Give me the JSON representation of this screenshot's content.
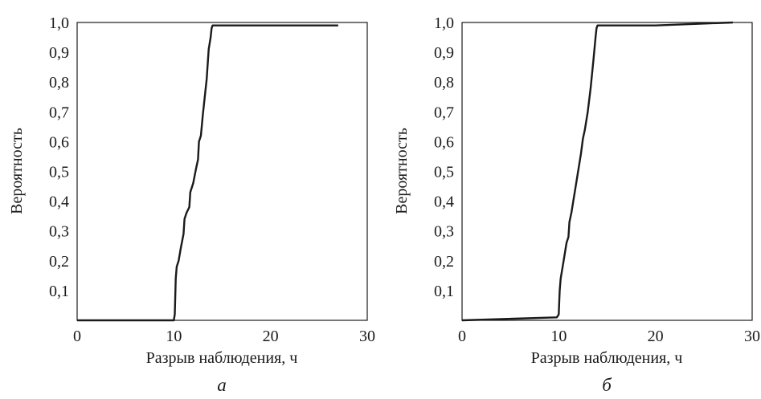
{
  "chart_data": [
    {
      "type": "line",
      "panel_label": "а",
      "xlabel": "Разрыв наблюдения, ч",
      "ylabel": "Вероятность",
      "xlim": [
        0,
        30
      ],
      "ylim": [
        0,
        1.0
      ],
      "x_ticks": [
        {
          "value": 0,
          "label": "0"
        },
        {
          "value": 10,
          "label": "10"
        },
        {
          "value": 20,
          "label": "20"
        },
        {
          "value": 30,
          "label": "30"
        }
      ],
      "y_ticks": [
        {
          "value": 0.1,
          "label": "0,1"
        },
        {
          "value": 0.2,
          "label": "0,2"
        },
        {
          "value": 0.3,
          "label": "0,3"
        },
        {
          "value": 0.4,
          "label": "0,4"
        },
        {
          "value": 0.5,
          "label": "0,5"
        },
        {
          "value": 0.6,
          "label": "0,6"
        },
        {
          "value": 0.7,
          "label": "0,7"
        },
        {
          "value": 0.8,
          "label": "0,8"
        },
        {
          "value": 0.9,
          "label": "0,9"
        },
        {
          "value": 1.0,
          "label": "1,0"
        }
      ],
      "grid": false,
      "series": [
        {
          "color": "#1a1a1a",
          "x": [
            0.0,
            10.0,
            10.1,
            10.15,
            10.2,
            10.3,
            10.5,
            10.7,
            11.0,
            11.1,
            11.3,
            11.6,
            11.7,
            12.0,
            12.3,
            12.5,
            12.6,
            12.8,
            13.0,
            13.4,
            13.6,
            13.8,
            13.9,
            14.0,
            27.0
          ],
          "y": [
            0.0,
            0.0,
            0.02,
            0.08,
            0.14,
            0.18,
            0.2,
            0.24,
            0.29,
            0.34,
            0.36,
            0.38,
            0.43,
            0.46,
            0.51,
            0.54,
            0.6,
            0.62,
            0.69,
            0.81,
            0.91,
            0.95,
            0.98,
            0.99,
            0.99
          ]
        }
      ]
    },
    {
      "type": "line",
      "panel_label": "б",
      "xlabel": "Разрыв наблюдения, ч",
      "ylabel": "Вероятность",
      "xlim": [
        0,
        30
      ],
      "ylim": [
        0,
        1.0
      ],
      "x_ticks": [
        {
          "value": 0,
          "label": "0"
        },
        {
          "value": 10,
          "label": "10"
        },
        {
          "value": 20,
          "label": "20"
        },
        {
          "value": 30,
          "label": "30"
        }
      ],
      "y_ticks": [
        {
          "value": 0.1,
          "label": "0,1"
        },
        {
          "value": 0.2,
          "label": "0,2"
        },
        {
          "value": 0.3,
          "label": "0,3"
        },
        {
          "value": 0.4,
          "label": "0,4"
        },
        {
          "value": 0.5,
          "label": "0,5"
        },
        {
          "value": 0.6,
          "label": "0,6"
        },
        {
          "value": 0.7,
          "label": "0,7"
        },
        {
          "value": 0.8,
          "label": "0,8"
        },
        {
          "value": 0.9,
          "label": "0,9"
        },
        {
          "value": 1.0,
          "label": "1,0"
        }
      ],
      "grid": false,
      "series": [
        {
          "color": "#1a1a1a",
          "x": [
            0.0,
            9.8,
            10.0,
            10.1,
            10.2,
            10.5,
            10.8,
            11.0,
            11.1,
            11.3,
            11.5,
            11.7,
            11.9,
            12.1,
            12.3,
            12.5,
            12.7,
            13.0,
            13.3,
            13.6,
            13.8,
            13.9,
            14.0,
            20.0,
            28.0
          ],
          "y": [
            0.0,
            0.01,
            0.02,
            0.1,
            0.14,
            0.2,
            0.26,
            0.28,
            0.33,
            0.36,
            0.4,
            0.44,
            0.48,
            0.52,
            0.56,
            0.61,
            0.64,
            0.7,
            0.78,
            0.88,
            0.95,
            0.98,
            0.99,
            0.99,
            1.0
          ]
        }
      ]
    }
  ]
}
